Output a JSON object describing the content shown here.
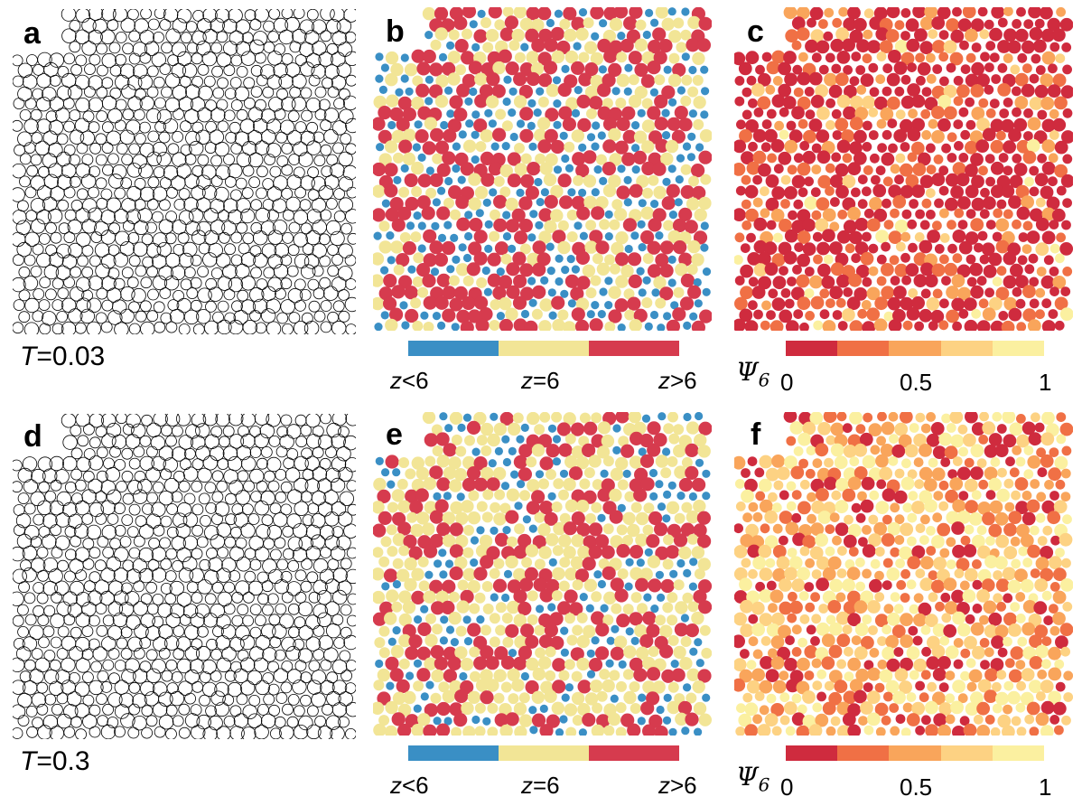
{
  "panels": [
    {
      "id": "a",
      "label": "a",
      "mode": "outline",
      "seed": 11,
      "temperature": "T=0.03"
    },
    {
      "id": "b",
      "label": "b",
      "mode": "coordination",
      "seed": 22
    },
    {
      "id": "c",
      "label": "c",
      "mode": "psi6",
      "seed": 33
    },
    {
      "id": "d",
      "label": "d",
      "mode": "outline",
      "seed": 44,
      "temperature": "T=0.3"
    },
    {
      "id": "e",
      "label": "e",
      "mode": "coordination",
      "seed": 55
    },
    {
      "id": "f",
      "label": "f",
      "mode": "psi6",
      "seed": 66
    }
  ],
  "temperature_labels": {
    "top": {
      "symbol": "T",
      "value": "=0.03"
    },
    "bottom": {
      "symbol": "T",
      "value": "=0.3"
    }
  },
  "coordination_legend": {
    "colors": {
      "low": "#3a8fc5",
      "six": "#f2e596",
      "high": "#d63b4e"
    },
    "labels": {
      "low": {
        "sym": "z",
        "rest": "<6"
      },
      "six": {
        "sym": "z",
        "rest": "=6"
      },
      "high": {
        "sym": "z",
        "rest": ">6"
      }
    }
  },
  "psi6_legend": {
    "symbol": "Ψ",
    "subscript": "6",
    "colors": [
      "#cf2b3e",
      "#f07045",
      "#f9a55b",
      "#fdd283",
      "#fbf0a0"
    ],
    "ticks": [
      "0",
      "0.5",
      "1"
    ]
  },
  "style": {
    "outline_color": "#000000",
    "background": "#ffffff"
  }
}
